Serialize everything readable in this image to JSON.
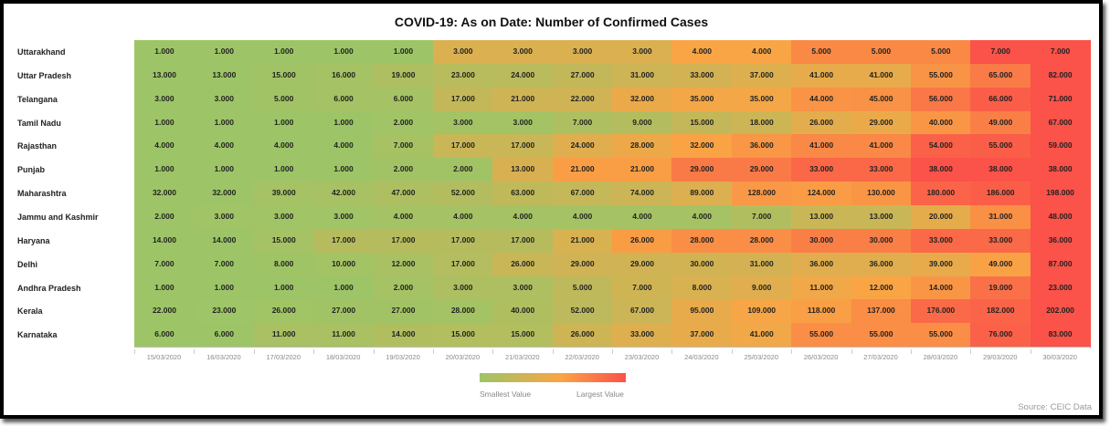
{
  "chart_data": {
    "type": "heatmap",
    "title": "COVID-19: As on Date: Number of Confirmed Cases",
    "x": [
      "15/03/2020",
      "16/03/2020",
      "17/03/2020",
      "18/03/2020",
      "19/03/2020",
      "20/03/2020",
      "21/03/2020",
      "22/03/2020",
      "23/03/2020",
      "24/03/2020",
      "25/03/2020",
      "26/03/2020",
      "27/03/2020",
      "28/03/2020",
      "29/03/2020",
      "30/03/2020"
    ],
    "y": [
      "Uttarakhand",
      "Uttar Pradesh",
      "Telangana",
      "Tamil Nadu",
      "Rajasthan",
      "Punjab",
      "Maharashtra",
      "Jammu and Kashmir",
      "Haryana",
      "Delhi",
      "Andhra Pradesh",
      "Kerala",
      "Karnataka"
    ],
    "values": [
      [
        1,
        1,
        1,
        1,
        1,
        3,
        3,
        3,
        3,
        4,
        4,
        5,
        5,
        5,
        7,
        7
      ],
      [
        13,
        13,
        15,
        16,
        19,
        23,
        24,
        27,
        31,
        33,
        37,
        41,
        41,
        55,
        65,
        82
      ],
      [
        3,
        3,
        5,
        6,
        6,
        17,
        21,
        22,
        32,
        35,
        35,
        44,
        45,
        56,
        66,
        71
      ],
      [
        1,
        1,
        1,
        1,
        2,
        3,
        3,
        7,
        9,
        15,
        18,
        26,
        29,
        40,
        49,
        67
      ],
      [
        4,
        4,
        4,
        4,
        7,
        17,
        17,
        24,
        28,
        32,
        36,
        41,
        41,
        54,
        55,
        59
      ],
      [
        1,
        1,
        1,
        1,
        2,
        2,
        13,
        21,
        21,
        29,
        29,
        33,
        33,
        38,
        38,
        38
      ],
      [
        32,
        32,
        39,
        42,
        47,
        52,
        63,
        67,
        74,
        89,
        128,
        124,
        130,
        180,
        186,
        198
      ],
      [
        2,
        3,
        3,
        3,
        4,
        4,
        4,
        4,
        4,
        4,
        7,
        13,
        13,
        20,
        31,
        48
      ],
      [
        14,
        14,
        15,
        17,
        17,
        17,
        17,
        21,
        26,
        28,
        28,
        30,
        30,
        33,
        33,
        36
      ],
      [
        7,
        7,
        8,
        10,
        12,
        17,
        26,
        29,
        29,
        30,
        31,
        36,
        36,
        39,
        49,
        87
      ],
      [
        1,
        1,
        1,
        1,
        2,
        3,
        3,
        5,
        7,
        8,
        9,
        11,
        12,
        14,
        19,
        23
      ],
      [
        22,
        23,
        26,
        27,
        27,
        28,
        40,
        52,
        67,
        95,
        109,
        118,
        137,
        176,
        182,
        202
      ],
      [
        6,
        6,
        11,
        11,
        14,
        15,
        15,
        26,
        33,
        37,
        41,
        55,
        55,
        55,
        76,
        83
      ]
    ],
    "value_format_decimals": 3,
    "color_scale": {
      "low": "#9dc567",
      "mid": "#f9a545",
      "high": "#fb5249"
    },
    "legend": {
      "low_label": "Smallest Value",
      "high_label": "Largest Value",
      "placement": "bottom-center"
    },
    "source": "Source: CEIC Data"
  }
}
